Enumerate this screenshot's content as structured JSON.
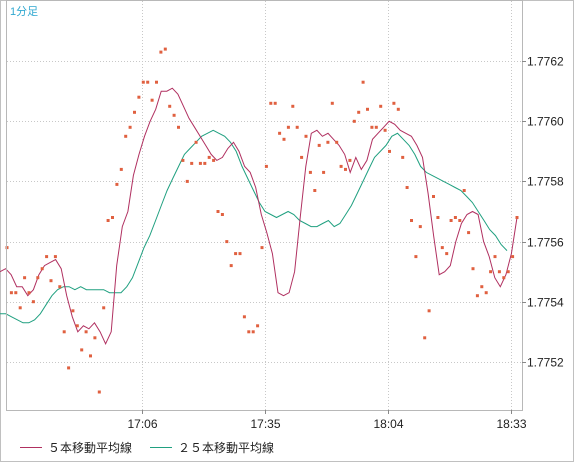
{
  "chart_data": {
    "type": "line",
    "timeframe_label": "1分足",
    "x_ticks": [
      "17:06",
      "17:35",
      "18:04",
      "18:33"
    ],
    "y_ticks": [
      "1.7762",
      "1.7760",
      "1.7758",
      "1.7756",
      "1.7754",
      "1.7752"
    ],
    "ylim": [
      1.77504,
      1.7764
    ],
    "grid": true,
    "legend_position": "bottom",
    "colors": {
      "price": "#e06040",
      "ma5": "#b03060",
      "ma25": "#20a080",
      "grid": "#c8c8c8",
      "timeframe_label": "#30a8d0"
    },
    "series": [
      {
        "key": "price",
        "render": "dots",
        "values": [
          1.77558,
          1.77543,
          1.77543,
          1.77538,
          1.77548,
          1.77543,
          1.7754,
          1.77548,
          1.77551,
          1.77555,
          1.77547,
          1.77555,
          1.77545,
          1.7753,
          1.77518,
          1.77537,
          1.77532,
          1.77524,
          1.7753,
          1.77522,
          1.77528,
          1.7751,
          1.77538,
          1.77567,
          1.77568,
          1.77579,
          1.77584,
          1.77595,
          1.77598,
          1.77603,
          1.77608,
          1.77613,
          1.77613,
          1.77607,
          1.77613,
          1.77623,
          1.77624,
          1.77605,
          1.77602,
          1.77598,
          1.77587,
          1.7758,
          1.77586,
          1.77593,
          1.77586,
          1.77586,
          1.77588,
          1.77587,
          1.7757,
          1.77569,
          1.7756,
          1.77552,
          1.77556,
          1.77556,
          1.77535,
          1.7753,
          1.7753,
          1.77532,
          1.77558,
          1.77585,
          1.77606,
          1.77606,
          1.77596,
          1.77594,
          1.77598,
          1.77605,
          1.77598,
          1.77588,
          1.77595,
          1.77583,
          1.77577,
          1.77592,
          1.77583,
          1.77593,
          1.77606,
          1.77593,
          1.77585,
          1.77584,
          1.77587,
          1.776,
          1.77603,
          1.77613,
          1.77604,
          1.77598,
          1.77598,
          1.77605,
          1.77597,
          1.7759,
          1.77606,
          1.77604,
          1.77588,
          1.77578,
          1.77567,
          1.77555,
          1.77565,
          1.77528,
          1.77537,
          1.77575,
          1.77568,
          1.77558,
          1.77556,
          1.77567,
          1.77568,
          1.77567,
          1.77577,
          1.77563,
          1.77551,
          1.77542,
          1.77545,
          1.77543,
          1.7755,
          1.77555,
          1.7755,
          1.77548,
          1.7755,
          1.77555,
          1.77568
        ]
      },
      {
        "key": "ma5",
        "name": "５本移動平均線",
        "render": "line",
        "values": [
          1.7755,
          1.77551,
          1.77549,
          1.77545,
          1.77545,
          1.77542,
          1.77544,
          1.77549,
          1.77552,
          1.77553,
          1.77554,
          1.77551,
          1.77542,
          1.77535,
          1.7753,
          1.77532,
          1.77531,
          1.77533,
          1.7753,
          1.77526,
          1.7753,
          1.77552,
          1.77565,
          1.7757,
          1.77582,
          1.77589,
          1.77595,
          1.776,
          1.77604,
          1.7761,
          1.7761,
          1.77611,
          1.77609,
          1.77605,
          1.77601,
          1.77598,
          1.77595,
          1.77592,
          1.77589,
          1.77587,
          1.77588,
          1.77591,
          1.77593,
          1.7759,
          1.77585,
          1.77583,
          1.77578,
          1.77569,
          1.77563,
          1.77556,
          1.77543,
          1.77542,
          1.77543,
          1.7755,
          1.77568,
          1.77585,
          1.77596,
          1.77597,
          1.77595,
          1.77596,
          1.77594,
          1.77592,
          1.77589,
          1.77583,
          1.77588,
          1.77584,
          1.77587,
          1.77594,
          1.77596,
          1.77598,
          1.776,
          1.77599,
          1.77597,
          1.77596,
          1.77595,
          1.77592,
          1.77588,
          1.77576,
          1.77562,
          1.77549,
          1.7755,
          1.77552,
          1.7756,
          1.77566,
          1.77569,
          1.7757,
          1.77569,
          1.7756,
          1.77555,
          1.77548,
          1.77545,
          1.77549,
          1.77556,
          1.77568
        ]
      },
      {
        "key": "ma25",
        "name": "２５本移動平均線",
        "render": "line",
        "values": [
          1.77536,
          1.77536,
          1.77535,
          1.77534,
          1.77533,
          1.77533,
          1.77534,
          1.77536,
          1.77539,
          1.77542,
          1.77544,
          1.77545,
          1.77545,
          1.77544,
          1.77545,
          1.77544,
          1.77544,
          1.77544,
          1.77544,
          1.77543,
          1.77543,
          1.77543,
          1.77545,
          1.77548,
          1.77553,
          1.77558,
          1.77562,
          1.77567,
          1.77572,
          1.77577,
          1.77581,
          1.77585,
          1.77589,
          1.77591,
          1.77593,
          1.77595,
          1.77596,
          1.77597,
          1.77596,
          1.77595,
          1.77593,
          1.7759,
          1.77585,
          1.77581,
          1.77577,
          1.77573,
          1.7757,
          1.77569,
          1.77568,
          1.77569,
          1.7757,
          1.77569,
          1.77567,
          1.77566,
          1.77565,
          1.77565,
          1.77566,
          1.77567,
          1.77565,
          1.77566,
          1.77569,
          1.77572,
          1.77576,
          1.7758,
          1.77584,
          1.77588,
          1.7759,
          1.77592,
          1.77595,
          1.77596,
          1.77594,
          1.77592,
          1.77589,
          1.77585,
          1.77583,
          1.77582,
          1.77581,
          1.7758,
          1.77579,
          1.77578,
          1.77577,
          1.77575,
          1.77573,
          1.7757,
          1.77567,
          1.77564,
          1.77562,
          1.77559,
          1.77557
        ]
      }
    ]
  }
}
